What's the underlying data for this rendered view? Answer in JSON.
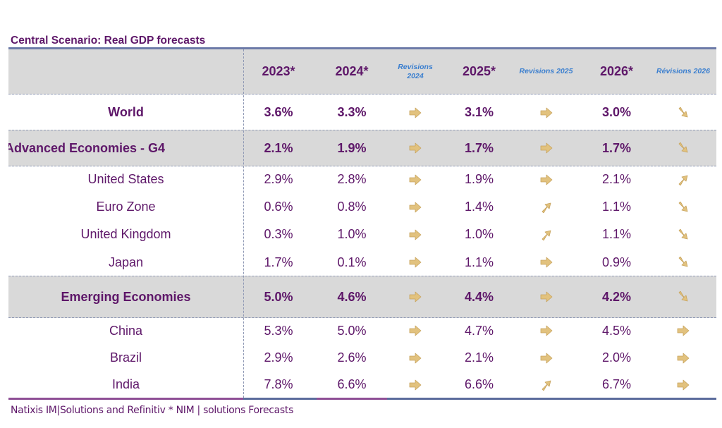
{
  "title": "Central Scenario: Real GDP forecasts",
  "header": {
    "label": "",
    "columns": [
      "2023*",
      "2024*",
      "Revisions 2024",
      "2025*",
      "Revisions 2025",
      "2026*",
      "Révisions 2026"
    ],
    "rev2024_line1": "Revisions",
    "rev2024_line2": "2024"
  },
  "rows": [
    {
      "label": "World",
      "bold": true,
      "shaded": false,
      "y2023": "3.6%",
      "y2024": "3.3%",
      "rev2024": "flat",
      "y2025": "3.1%",
      "rev2025": "flat",
      "y2026": "3.0%",
      "rev2026": "down"
    },
    {
      "label": "Advanced Economies - G4",
      "bold": true,
      "shaded": true,
      "y2023": "2.1%",
      "y2024": "1.9%",
      "rev2024": "flat",
      "y2025": "1.7%",
      "rev2025": "flat",
      "y2026": "1.7%",
      "rev2026": "down"
    },
    {
      "label": "United States",
      "bold": false,
      "shaded": false,
      "y2023": "2.9%",
      "y2024": "2.8%",
      "rev2024": "flat",
      "y2025": "1.9%",
      "rev2025": "flat",
      "y2026": "2.1%",
      "rev2026": "up"
    },
    {
      "label": "Euro Zone",
      "bold": false,
      "shaded": false,
      "y2023": "0.6%",
      "y2024": "0.8%",
      "rev2024": "flat",
      "y2025": "1.4%",
      "rev2025": "up",
      "y2026": "1.1%",
      "rev2026": "down"
    },
    {
      "label": "United Kingdom",
      "bold": false,
      "shaded": false,
      "y2023": "0.3%",
      "y2024": "1.0%",
      "rev2024": "flat",
      "y2025": "1.0%",
      "rev2025": "up",
      "y2026": "1.1%",
      "rev2026": "down"
    },
    {
      "label": "Japan",
      "bold": false,
      "shaded": false,
      "y2023": "1.7%",
      "y2024": "0.1%",
      "rev2024": "flat",
      "y2025": "1.1%",
      "rev2025": "flat",
      "y2026": "0.9%",
      "rev2026": "down"
    },
    {
      "label": "Emerging Economies",
      "bold": true,
      "shaded": true,
      "y2023": "5.0%",
      "y2024": "4.6%",
      "rev2024": "flat",
      "y2025": "4.4%",
      "rev2025": "flat",
      "y2026": "4.2%",
      "rev2026": "down"
    },
    {
      "label": "China",
      "bold": false,
      "shaded": false,
      "y2023": "5.3%",
      "y2024": "5.0%",
      "rev2024": "flat",
      "y2025": "4.7%",
      "rev2025": "flat",
      "y2026": "4.5%",
      "rev2026": "flat"
    },
    {
      "label": "Brazil",
      "bold": false,
      "shaded": false,
      "y2023": "2.9%",
      "y2024": "2.6%",
      "rev2024": "flat",
      "y2025": "2.1%",
      "rev2025": "flat",
      "y2026": "2.0%",
      "rev2026": "flat"
    },
    {
      "label": "India",
      "bold": false,
      "shaded": false,
      "y2023": "7.8%",
      "y2024": "6.6%",
      "rev2024": "flat",
      "y2025": "6.6%",
      "rev2025": "up",
      "y2026": "6.7%",
      "rev2026": "flat"
    }
  ],
  "icons": {
    "flat": "arrow-right-icon",
    "up": "arrow-up-right-icon",
    "down": "arrow-down-right-icon"
  },
  "colors": {
    "text": "#5e1769",
    "revision_header": "#3b7fcf",
    "arrow": "#e2c27e",
    "shade": "#d9d9d9",
    "rule": "#6d7ba8"
  },
  "footer": "Natixis IM|Solutions and Refinitiv * NIM | solutions Forecasts"
}
